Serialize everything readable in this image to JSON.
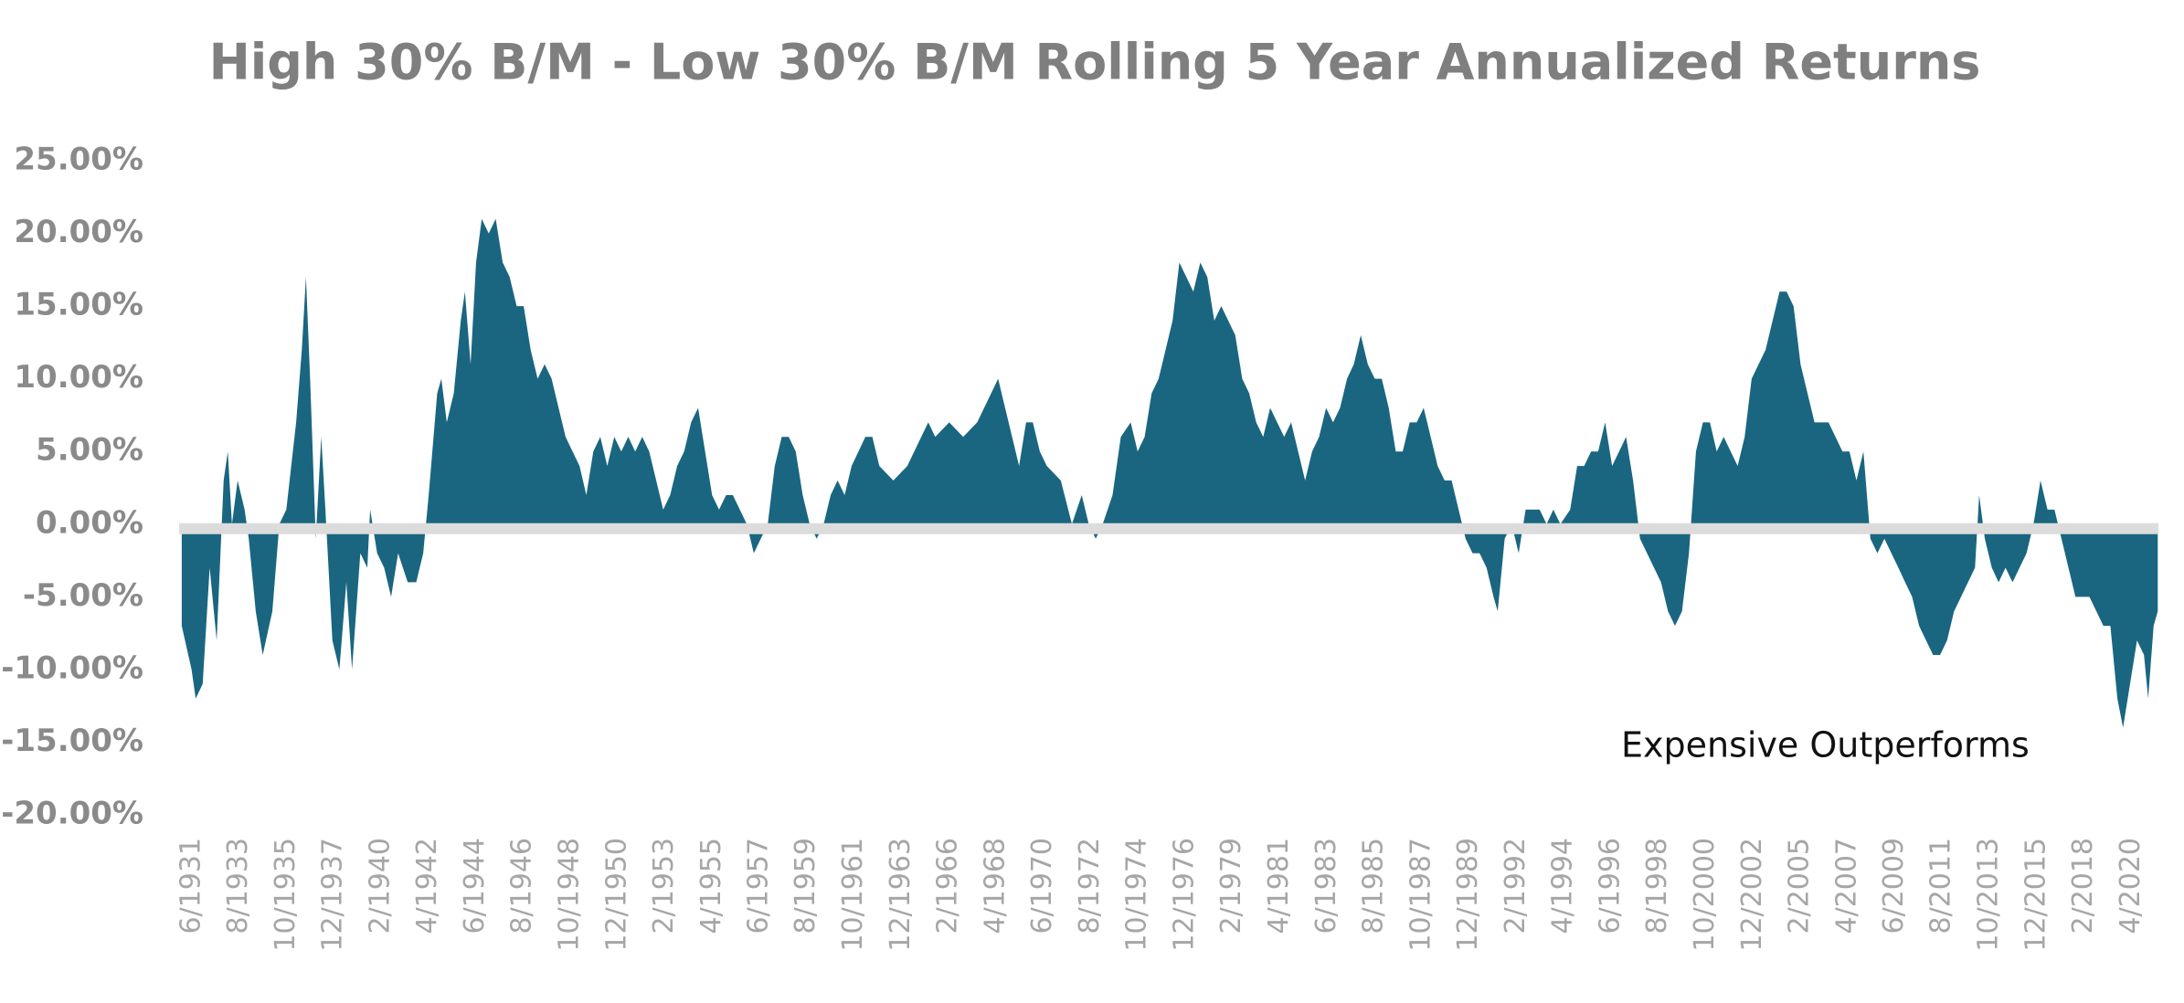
{
  "chart_data": {
    "type": "area",
    "title": "High 30% B/M - Low 30% B/M Rolling 5 Year Annualized Returns",
    "annotation": "Expensive Outperforms",
    "color": "#1a6680",
    "xlim": [
      1931.3,
      2021.95
    ],
    "ylim": [
      -20,
      25
    ],
    "yticks": [
      {
        "value": 25,
        "label": "25.00%"
      },
      {
        "value": 20,
        "label": "20.00%"
      },
      {
        "value": 15,
        "label": "15.00%"
      },
      {
        "value": 10,
        "label": "10.00%"
      },
      {
        "value": 5,
        "label": "5.00%"
      },
      {
        "value": 0,
        "label": "0.00%"
      },
      {
        "value": -5,
        "label": "-5.00%"
      },
      {
        "value": -10,
        "label": "-10.00%"
      },
      {
        "value": -15,
        "label": "-15.00%"
      },
      {
        "value": -20,
        "label": "-20.00%"
      }
    ],
    "xticks": [
      {
        "value": 1931.42,
        "label": "6/1931"
      },
      {
        "value": 1933.58,
        "label": "8/1933"
      },
      {
        "value": 1935.75,
        "label": "10/1935"
      },
      {
        "value": 1937.92,
        "label": "12/1937"
      },
      {
        "value": 1940.08,
        "label": "2/1940"
      },
      {
        "value": 1942.25,
        "label": "4/1942"
      },
      {
        "value": 1944.42,
        "label": "6/1944"
      },
      {
        "value": 1946.58,
        "label": "8/1946"
      },
      {
        "value": 1948.75,
        "label": "10/1948"
      },
      {
        "value": 1950.92,
        "label": "12/1950"
      },
      {
        "value": 1953.08,
        "label": "2/1953"
      },
      {
        "value": 1955.25,
        "label": "4/1955"
      },
      {
        "value": 1957.42,
        "label": "6/1957"
      },
      {
        "value": 1959.58,
        "label": "8/1959"
      },
      {
        "value": 1961.75,
        "label": "10/1961"
      },
      {
        "value": 1963.92,
        "label": "12/1963"
      },
      {
        "value": 1966.08,
        "label": "2/1966"
      },
      {
        "value": 1968.25,
        "label": "4/1968"
      },
      {
        "value": 1970.42,
        "label": "6/1970"
      },
      {
        "value": 1972.58,
        "label": "8/1972"
      },
      {
        "value": 1974.75,
        "label": "10/1974"
      },
      {
        "value": 1976.92,
        "label": "12/1976"
      },
      {
        "value": 1979.08,
        "label": "2/1979"
      },
      {
        "value": 1981.25,
        "label": "4/1981"
      },
      {
        "value": 1983.42,
        "label": "6/1983"
      },
      {
        "value": 1985.58,
        "label": "8/1985"
      },
      {
        "value": 1987.75,
        "label": "10/1987"
      },
      {
        "value": 1989.92,
        "label": "12/1989"
      },
      {
        "value": 1992.08,
        "label": "2/1992"
      },
      {
        "value": 1994.25,
        "label": "4/1994"
      },
      {
        "value": 1996.42,
        "label": "6/1996"
      },
      {
        "value": 1998.58,
        "label": "8/1998"
      },
      {
        "value": 2000.75,
        "label": "10/2000"
      },
      {
        "value": 2002.92,
        "label": "12/2002"
      },
      {
        "value": 2005.08,
        "label": "2/2005"
      },
      {
        "value": 2007.25,
        "label": "4/2007"
      },
      {
        "value": 2009.42,
        "label": "6/2009"
      },
      {
        "value": 2011.58,
        "label": "8/2011"
      },
      {
        "value": 2013.75,
        "label": "10/2013"
      },
      {
        "value": 2015.92,
        "label": "12/2015"
      },
      {
        "value": 2018.08,
        "label": "2/2018"
      },
      {
        "value": 2020.25,
        "label": "4/2020"
      }
    ],
    "x": [
      1931.42,
      1931.87,
      1932.06,
      1932.38,
      1932.7,
      1933.02,
      1933.34,
      1933.53,
      1933.72,
      1933.98,
      1934.3,
      1934.49,
      1934.81,
      1935.13,
      1935.57,
      1935.89,
      1936.21,
      1936.66,
      1936.92,
      1937.11,
      1937.3,
      1937.56,
      1937.81,
      1938.0,
      1938.32,
      1938.64,
      1938.96,
      1939.22,
      1939.6,
      1939.92,
      1940.05,
      1940.37,
      1940.69,
      1941.01,
      1941.33,
      1941.77,
      1942.16,
      1942.48,
      1942.73,
      1943.12,
      1943.31,
      1943.56,
      1943.88,
      1944.2,
      1944.39,
      1944.65,
      1944.9,
      1945.16,
      1945.48,
      1945.8,
      1946.12,
      1946.44,
      1946.76,
      1947.08,
      1947.4,
      1947.72,
      1948.04,
      1948.36,
      1948.68,
      1949.0,
      1949.32,
      1949.64,
      1949.95,
      1950.27,
      1950.59,
      1950.91,
      1951.23,
      1951.55,
      1951.87,
      1952.19,
      1952.51,
      1952.83,
      1953.15,
      1953.47,
      1953.79,
      1954.11,
      1954.43,
      1954.75,
      1955.07,
      1955.39,
      1955.71,
      1956.03,
      1956.35,
      1956.66,
      1956.98,
      1957.3,
      1957.62,
      1957.94,
      1958.26,
      1958.58,
      1958.9,
      1959.22,
      1959.54,
      1959.86,
      1960.18,
      1960.5,
      1960.82,
      1961.14,
      1961.46,
      1961.78,
      1962.1,
      1962.73,
      1963.05,
      1963.37,
      1964.01,
      1964.65,
      1965.29,
      1965.61,
      1965.93,
      1966.57,
      1967.21,
      1967.85,
      1968.49,
      1968.81,
      1969.13,
      1969.45,
      1969.77,
      1970.09,
      1970.4,
      1970.72,
      1971.04,
      1971.68,
      1972.19,
      1972.64,
      1972.96,
      1973.28,
      1973.6,
      1974.05,
      1974.43,
      1974.88,
      1975.2,
      1975.52,
      1975.84,
      1976.16,
      1976.48,
      1976.8,
      1977.11,
      1977.43,
      1977.75,
      1978.07,
      1978.39,
      1978.71,
      1979.03,
      1979.35,
      1979.67,
      1979.99,
      1980.31,
      1980.63,
      1980.95,
      1981.27,
      1981.59,
      1981.91,
      1982.23,
      1982.55,
      1982.87,
      1983.19,
      1983.51,
      1983.83,
      1984.15,
      1984.47,
      1984.79,
      1985.1,
      1985.42,
      1985.74,
      1986.06,
      1986.38,
      1986.7,
      1987.02,
      1987.34,
      1987.66,
      1987.98,
      1988.3,
      1988.62,
      1988.94,
      1989.26,
      1989.58,
      1989.9,
      1990.22,
      1990.54,
      1990.86,
      1991.18,
      1991.5,
      1991.69,
      1992.01,
      1992.33,
      1992.65,
      1992.97,
      1993.29,
      1993.61,
      1993.93,
      1994.24,
      1994.56,
      1995.01,
      1995.33,
      1995.65,
      1995.97,
      1996.29,
      1996.61,
      1996.93,
      1997.25,
      1997.57,
      1997.89,
      1998.21,
      1998.53,
      1998.85,
      1999.17,
      1999.49,
      1999.81,
      2000.13,
      2000.45,
      2000.77,
      2001.09,
      2001.41,
      2001.72,
      2002.04,
      2002.36,
      2002.68,
      2003.0,
      2003.32,
      2003.64,
      2003.96,
      2004.28,
      2004.6,
      2004.92,
      2005.24,
      2005.56,
      2005.88,
      2006.2,
      2006.52,
      2006.84,
      2007.16,
      2007.48,
      2007.8,
      2008.12,
      2008.44,
      2008.76,
      2009.08,
      2009.4,
      2009.72,
      2010.04,
      2010.35,
      2010.67,
      2010.99,
      2011.31,
      2011.63,
      2011.95,
      2012.27,
      2012.59,
      2012.91,
      2013.23,
      2013.55,
      2013.74,
      2014.0,
      2014.32,
      2014.63,
      2014.95,
      2015.27,
      2015.59,
      2015.91,
      2016.23,
      2016.55,
      2016.87,
      2017.19,
      2017.51,
      2017.83,
      2018.15,
      2018.47,
      2018.79,
      2019.11,
      2019.43,
      2019.75,
      2020.07,
      2020.33,
      2020.65,
      2020.97,
      2021.29,
      2021.48,
      2021.73,
      2021.92
    ],
    "values": [
      -7,
      -10,
      -12,
      -11,
      -3,
      -8,
      3,
      5,
      0,
      3,
      1,
      -1,
      -6,
      -9,
      -6,
      0,
      1,
      7,
      12,
      17,
      10,
      -1,
      6,
      1,
      -8,
      -10,
      -4,
      -10,
      -2,
      -3,
      1,
      -2,
      -3,
      -5,
      -2,
      -4,
      -4,
      -2,
      2,
      9,
      10,
      7,
      9,
      14,
      16,
      11,
      18,
      21,
      20,
      21,
      18,
      17,
      15,
      15,
      12,
      10,
      11,
      10,
      8,
      6,
      5,
      4,
      2,
      5,
      6,
      4,
      6,
      5,
      6,
      5,
      6,
      5,
      3,
      1,
      2,
      4,
      5,
      7,
      8,
      5,
      2,
      1,
      2,
      2,
      1,
      0,
      -2,
      -1,
      0,
      4,
      6,
      6,
      5,
      2,
      0,
      -1,
      0,
      2,
      3,
      2,
      4,
      6,
      6,
      4,
      3,
      4,
      6,
      7,
      6,
      7,
      6,
      7,
      9,
      10,
      8,
      6,
      4,
      7,
      7,
      5,
      4,
      3,
      0,
      2,
      0,
      -1,
      0,
      2,
      6,
      7,
      5,
      6,
      9,
      10,
      12,
      14,
      18,
      17,
      16,
      18,
      17,
      14,
      15,
      14,
      13,
      10,
      9,
      7,
      6,
      8,
      7,
      6,
      7,
      5,
      3,
      5,
      6,
      8,
      7,
      8,
      10,
      11,
      13,
      11,
      10,
      10,
      8,
      5,
      5,
      7,
      7,
      8,
      6,
      4,
      3,
      3,
      1,
      -1,
      -2,
      -2,
      -3,
      -5,
      -6,
      -1,
      0,
      -2,
      1,
      1,
      1,
      0,
      1,
      0,
      1,
      4,
      4,
      5,
      5,
      7,
      4,
      5,
      6,
      3,
      -1,
      -2,
      -3,
      -4,
      -6,
      -7,
      -6,
      -2,
      5,
      7,
      7,
      5,
      6,
      5,
      4,
      6,
      10,
      11,
      12,
      14,
      16,
      16,
      15,
      11,
      9,
      7,
      7,
      7,
      6,
      5,
      5,
      3,
      5,
      -1,
      -2,
      -1,
      -2,
      -3,
      -4,
      -5,
      -7,
      -8,
      -9,
      -9,
      -8,
      -6,
      -5,
      -4,
      -3,
      2,
      -1,
      -3,
      -4,
      -3,
      -4,
      -3,
      -2,
      0,
      3,
      1,
      1,
      -1,
      -3,
      -5,
      -5,
      -5,
      -6,
      -7,
      -7,
      -12,
      -14,
      -11,
      -8,
      -9,
      -12,
      -7,
      -6
    ]
  }
}
